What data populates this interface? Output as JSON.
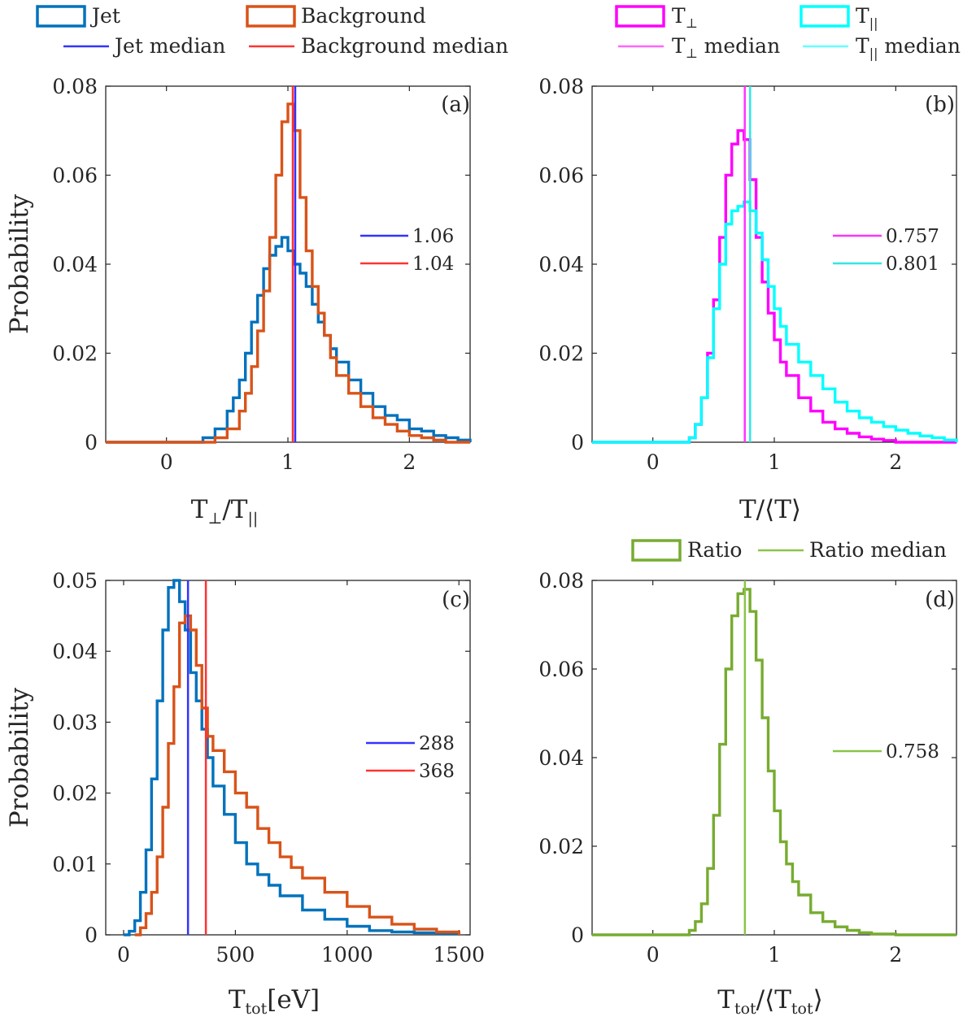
{
  "figure": {
    "panels": [
      "(a)",
      "(b)",
      "(c)",
      "(d)"
    ]
  },
  "chart_data": [
    {
      "id": "a",
      "type": "line",
      "style": "step-histogram",
      "panel_label": "(a)",
      "xlabel": "T⊥/T||",
      "ylabel": "Probability",
      "xlim": [
        -0.5,
        2.5
      ],
      "ylim": [
        0,
        0.08
      ],
      "xticks": [
        0,
        1,
        2
      ],
      "xtick_labels": [
        "0",
        "1",
        "2"
      ],
      "yticks": [
        0,
        0.02,
        0.04,
        0.06,
        0.08
      ],
      "ytick_labels": [
        "0",
        "0.02",
        "0.04",
        "0.06",
        "0.08"
      ],
      "legend": [
        {
          "label": "Jet",
          "kind": "patch",
          "color": "#0072BD"
        },
        {
          "label": "Background",
          "kind": "patch",
          "color": "#D95319"
        },
        {
          "label": "Jet median",
          "kind": "line",
          "color": "#3333ff"
        },
        {
          "label": "Background median",
          "kind": "line",
          "color": "#ff3333"
        }
      ],
      "series": [
        {
          "name": "Jet",
          "color": "#0072BD",
          "x": [
            -0.5,
            0.2,
            0.3,
            0.4,
            0.5,
            0.55,
            0.6,
            0.65,
            0.7,
            0.75,
            0.8,
            0.85,
            0.9,
            0.95,
            1.0,
            1.05,
            1.1,
            1.15,
            1.2,
            1.25,
            1.3,
            1.35,
            1.4,
            1.5,
            1.6,
            1.7,
            1.8,
            1.9,
            2.0,
            2.1,
            2.2,
            2.3,
            2.4,
            2.5
          ],
          "y": [
            0,
            0,
            0.001,
            0.003,
            0.007,
            0.01,
            0.014,
            0.02,
            0.027,
            0.033,
            0.039,
            0.042,
            0.044,
            0.046,
            0.043,
            0.04,
            0.038,
            0.035,
            0.031,
            0.027,
            0.024,
            0.021,
            0.018,
            0.014,
            0.011,
            0.008,
            0.006,
            0.005,
            0.003,
            0.0025,
            0.0015,
            0.001,
            0.0005,
            0
          ]
        },
        {
          "name": "Background",
          "color": "#D95319",
          "x": [
            -0.5,
            0.3,
            0.4,
            0.5,
            0.6,
            0.65,
            0.7,
            0.75,
            0.8,
            0.85,
            0.9,
            0.95,
            1.0,
            1.05,
            1.1,
            1.15,
            1.2,
            1.25,
            1.3,
            1.35,
            1.4,
            1.5,
            1.6,
            1.7,
            1.8,
            1.9,
            2.0,
            2.1,
            2.2,
            2.3,
            2.5
          ],
          "y": [
            0,
            0,
            0.001,
            0.003,
            0.007,
            0.011,
            0.017,
            0.025,
            0.034,
            0.046,
            0.06,
            0.072,
            0.076,
            0.07,
            0.055,
            0.043,
            0.035,
            0.029,
            0.024,
            0.019,
            0.015,
            0.011,
            0.008,
            0.0055,
            0.004,
            0.0025,
            0.0015,
            0.001,
            0.0005,
            0,
            0
          ]
        }
      ],
      "medians": [
        {
          "name": "Jet median",
          "value": 1.06,
          "label": "1.06",
          "color": "#3333ff"
        },
        {
          "name": "Background median",
          "value": 1.04,
          "label": "1.04",
          "color": "#ff3333"
        }
      ]
    },
    {
      "id": "b",
      "type": "line",
      "style": "step-histogram",
      "panel_label": "(b)",
      "xlabel": "T/⟨T⟩",
      "ylabel": "",
      "xlim": [
        -0.5,
        2.5
      ],
      "ylim": [
        0,
        0.08
      ],
      "xticks": [
        0,
        1,
        2
      ],
      "xtick_labels": [
        "0",
        "1",
        "2"
      ],
      "yticks": [
        0,
        0.02,
        0.04,
        0.06,
        0.08
      ],
      "ytick_labels": [
        "0",
        "0.02",
        "0.04",
        "0.06",
        "0.08"
      ],
      "legend": [
        {
          "label": "T⊥",
          "kind": "patch",
          "color": "#ff00ff"
        },
        {
          "label": "T||",
          "kind": "patch",
          "color": "#00ffff"
        },
        {
          "label": "T⊥ median",
          "kind": "line",
          "color": "#ff66ff"
        },
        {
          "label": "T|| median",
          "kind": "line",
          "color": "#66ffff"
        }
      ],
      "series": [
        {
          "name": "T⊥",
          "color": "#ff00ff",
          "x": [
            -0.5,
            0.2,
            0.3,
            0.35,
            0.4,
            0.45,
            0.5,
            0.55,
            0.6,
            0.65,
            0.7,
            0.75,
            0.8,
            0.85,
            0.9,
            0.95,
            1.0,
            1.05,
            1.1,
            1.2,
            1.3,
            1.4,
            1.5,
            1.6,
            1.7,
            1.8,
            1.9,
            2.0,
            2.5
          ],
          "y": [
            0,
            0,
            0.001,
            0.004,
            0.01,
            0.02,
            0.032,
            0.046,
            0.06,
            0.067,
            0.07,
            0.068,
            0.059,
            0.046,
            0.036,
            0.029,
            0.023,
            0.018,
            0.015,
            0.01,
            0.007,
            0.0045,
            0.003,
            0.002,
            0.0012,
            0.0007,
            0.0004,
            0,
            0
          ]
        },
        {
          "name": "T||",
          "color": "#00ffff",
          "x": [
            -0.5,
            0.2,
            0.3,
            0.35,
            0.4,
            0.45,
            0.5,
            0.55,
            0.6,
            0.65,
            0.7,
            0.75,
            0.8,
            0.85,
            0.9,
            0.95,
            1.0,
            1.05,
            1.1,
            1.2,
            1.3,
            1.4,
            1.5,
            1.6,
            1.7,
            1.8,
            1.9,
            2.0,
            2.1,
            2.2,
            2.3,
            2.4,
            2.5
          ],
          "y": [
            0,
            0,
            0.001,
            0.004,
            0.01,
            0.019,
            0.03,
            0.04,
            0.049,
            0.052,
            0.053,
            0.054,
            0.052,
            0.047,
            0.041,
            0.035,
            0.03,
            0.026,
            0.022,
            0.018,
            0.015,
            0.012,
            0.009,
            0.007,
            0.0055,
            0.0045,
            0.0035,
            0.0027,
            0.002,
            0.0014,
            0.001,
            0.0005,
            0
          ]
        }
      ],
      "medians": [
        {
          "name": "T⊥ median",
          "value": 0.757,
          "label": "0.757",
          "color": "#ff33ff"
        },
        {
          "name": "T|| median",
          "value": 0.801,
          "label": "0.801",
          "color": "#33e6e6"
        }
      ]
    },
    {
      "id": "c",
      "type": "line",
      "style": "step-histogram",
      "panel_label": "(c)",
      "xlabel": "Ttot[eV]",
      "ylabel": "Probability",
      "xlim": [
        -80,
        1550
      ],
      "ylim": [
        0,
        0.05
      ],
      "xticks": [
        0,
        500,
        1000,
        1500
      ],
      "xtick_labels": [
        "0",
        "500",
        "1000",
        "1500"
      ],
      "yticks": [
        0,
        0.01,
        0.02,
        0.03,
        0.04,
        0.05
      ],
      "ytick_labels": [
        "0",
        "0.01",
        "0.02",
        "0.03",
        "0.04",
        "0.05"
      ],
      "legend": [],
      "series": [
        {
          "name": "Jet",
          "color": "#0072BD",
          "x": [
            0,
            25,
            50,
            75,
            100,
            125,
            150,
            175,
            200,
            225,
            250,
            275,
            300,
            325,
            350,
            375,
            400,
            450,
            500,
            550,
            600,
            650,
            700,
            800,
            900,
            1000,
            1100,
            1200,
            1300,
            1400,
            1500
          ],
          "y": [
            0,
            0.0005,
            0.002,
            0.006,
            0.012,
            0.022,
            0.033,
            0.043,
            0.049,
            0.05,
            0.047,
            0.043,
            0.037,
            0.033,
            0.029,
            0.025,
            0.021,
            0.017,
            0.013,
            0.01,
            0.0085,
            0.007,
            0.0055,
            0.0035,
            0.0022,
            0.0012,
            0.0006,
            0.0004,
            0.0003,
            0.0002,
            0
          ]
        },
        {
          "name": "Background",
          "color": "#D95319",
          "x": [
            50,
            75,
            100,
            125,
            150,
            175,
            200,
            225,
            250,
            275,
            300,
            325,
            350,
            375,
            400,
            450,
            500,
            550,
            600,
            650,
            700,
            750,
            800,
            900,
            1000,
            1100,
            1200,
            1300,
            1400,
            1500
          ],
          "y": [
            0,
            0.001,
            0.003,
            0.006,
            0.011,
            0.018,
            0.027,
            0.035,
            0.044,
            0.045,
            0.043,
            0.038,
            0.032,
            0.028,
            0.026,
            0.023,
            0.02,
            0.018,
            0.015,
            0.013,
            0.011,
            0.0095,
            0.008,
            0.006,
            0.004,
            0.0025,
            0.0015,
            0.0008,
            0.0004,
            0
          ]
        }
      ],
      "medians": [
        {
          "name": "Jet median",
          "value": 288,
          "label": "288",
          "color": "#3333ff"
        },
        {
          "name": "Background median",
          "value": 368,
          "label": "368",
          "color": "#ff3333"
        }
      ]
    },
    {
      "id": "d",
      "type": "line",
      "style": "step-histogram",
      "panel_label": "(d)",
      "xlabel": "Ttot/⟨Ttot⟩",
      "ylabel": "",
      "xlim": [
        -0.5,
        2.5
      ],
      "ylim": [
        0,
        0.08
      ],
      "xticks": [
        0,
        1,
        2
      ],
      "xtick_labels": [
        "0",
        "1",
        "2"
      ],
      "yticks": [
        0,
        0.02,
        0.04,
        0.06,
        0.08
      ],
      "ytick_labels": [
        "0",
        "0.02",
        "0.04",
        "0.06",
        "0.08"
      ],
      "legend": [
        {
          "label": "Ratio",
          "kind": "patch",
          "color": "#77AC30"
        },
        {
          "label": "Ratio median",
          "kind": "line",
          "color": "#8bc34a"
        }
      ],
      "series": [
        {
          "name": "Ratio",
          "color": "#77AC30",
          "x": [
            -0.5,
            0.2,
            0.3,
            0.35,
            0.4,
            0.45,
            0.5,
            0.55,
            0.6,
            0.65,
            0.7,
            0.75,
            0.8,
            0.85,
            0.9,
            0.95,
            1.0,
            1.05,
            1.1,
            1.15,
            1.2,
            1.3,
            1.4,
            1.5,
            1.6,
            1.7,
            1.8,
            2.0,
            2.5
          ],
          "y": [
            0,
            0,
            0.001,
            0.003,
            0.007,
            0.015,
            0.027,
            0.043,
            0.06,
            0.072,
            0.077,
            0.078,
            0.073,
            0.062,
            0.049,
            0.037,
            0.028,
            0.021,
            0.016,
            0.012,
            0.009,
            0.005,
            0.003,
            0.0018,
            0.001,
            0.0005,
            0.0002,
            0,
            0
          ]
        }
      ],
      "medians": [
        {
          "name": "Ratio median",
          "value": 0.758,
          "label": "0.758",
          "color": "#8bc34a"
        }
      ]
    }
  ]
}
